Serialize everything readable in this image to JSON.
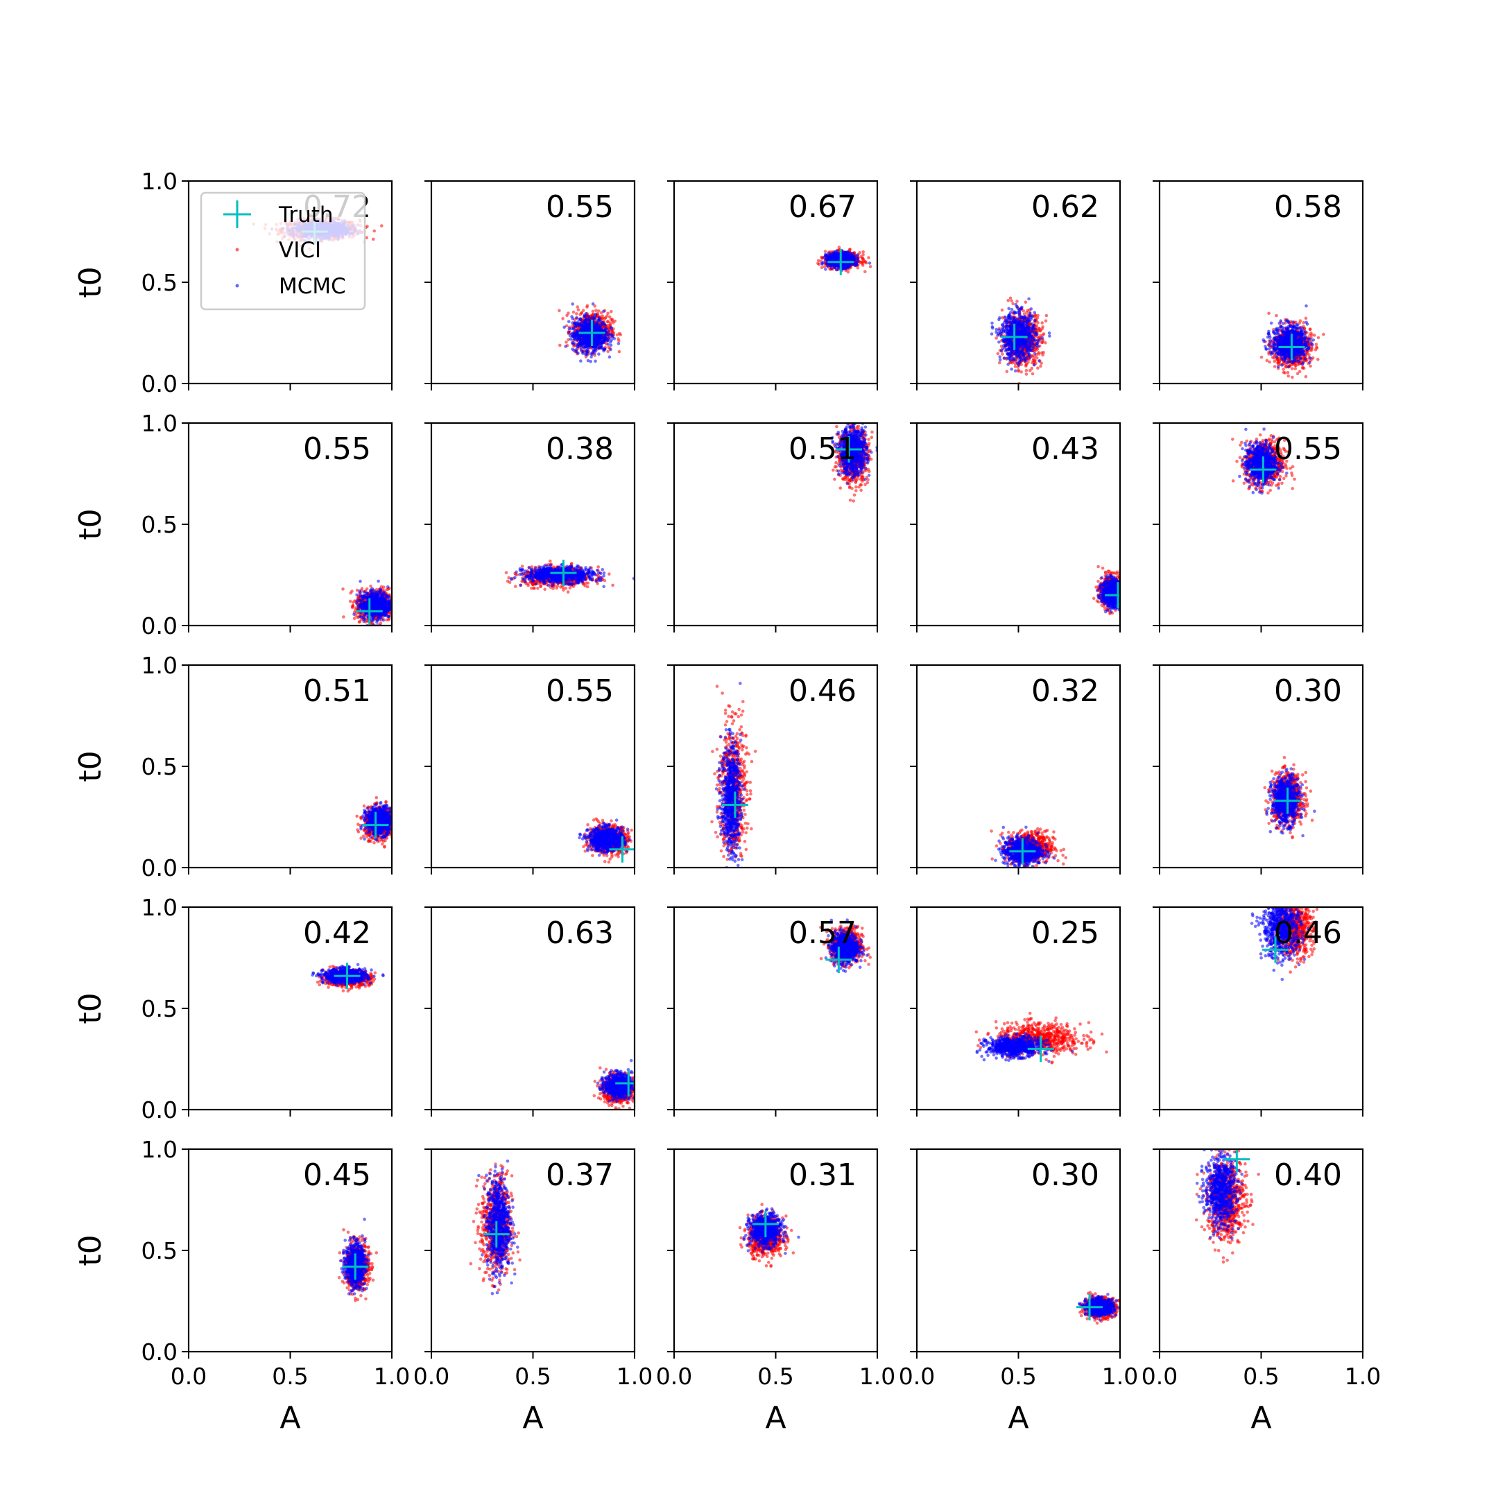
{
  "chart_data": {
    "type": "scatter",
    "grid": false,
    "legend_position": "top-left",
    "xlabel": "A",
    "ylabel": "t0",
    "xlim": [
      0,
      1
    ],
    "ylim": [
      0,
      1
    ],
    "xticks": [
      "0.0",
      "0.5",
      "1.0"
    ],
    "yticks": [
      "0.0",
      "0.5",
      "1.0"
    ],
    "legend": [
      {
        "label": "Truth",
        "marker": "plus",
        "color": "#00bfbf"
      },
      {
        "label": "VICI",
        "marker": "dot",
        "color": "#ff0000"
      },
      {
        "label": "MCMC",
        "marker": "dot",
        "color": "#0000ff"
      }
    ],
    "colors": {
      "truth": "#00bfbf",
      "vici": "#ff0000",
      "mcmc": "#0000ff"
    },
    "panels": [
      {
        "overlap": "0.72",
        "truth": [
          0.62,
          0.75
        ],
        "vici": {
          "center": [
            0.65,
            0.76
          ],
          "spread": [
            0.1,
            0.025
          ]
        },
        "mcmc": {
          "center": [
            0.66,
            0.76
          ],
          "spread": [
            0.07,
            0.02
          ]
        }
      },
      {
        "overlap": "0.55",
        "truth": [
          0.79,
          0.25
        ],
        "vici": {
          "center": [
            0.79,
            0.26
          ],
          "spread": [
            0.05,
            0.05
          ]
        },
        "mcmc": {
          "center": [
            0.78,
            0.24
          ],
          "spread": [
            0.045,
            0.045
          ]
        }
      },
      {
        "overlap": "0.67",
        "truth": [
          0.82,
          0.6
        ],
        "vici": {
          "center": [
            0.83,
            0.61
          ],
          "spread": [
            0.045,
            0.02
          ]
        },
        "mcmc": {
          "center": [
            0.82,
            0.61
          ],
          "spread": [
            0.035,
            0.018
          ]
        }
      },
      {
        "overlap": "0.62",
        "truth": [
          0.48,
          0.23
        ],
        "vici": {
          "center": [
            0.52,
            0.22
          ],
          "spread": [
            0.05,
            0.07
          ]
        },
        "mcmc": {
          "center": [
            0.5,
            0.23
          ],
          "spread": [
            0.045,
            0.06
          ]
        }
      },
      {
        "overlap": "0.58",
        "truth": [
          0.65,
          0.18
        ],
        "vici": {
          "center": [
            0.65,
            0.18
          ],
          "spread": [
            0.05,
            0.055
          ]
        },
        "mcmc": {
          "center": [
            0.64,
            0.2
          ],
          "spread": [
            0.045,
            0.045
          ]
        }
      },
      {
        "overlap": "0.55",
        "truth": [
          0.89,
          0.07
        ],
        "vici": {
          "center": [
            0.92,
            0.1
          ],
          "spread": [
            0.05,
            0.04
          ]
        },
        "mcmc": {
          "center": [
            0.92,
            0.1
          ],
          "spread": [
            0.04,
            0.035
          ]
        }
      },
      {
        "overlap": "0.38",
        "truth": [
          0.65,
          0.26
        ],
        "vici": {
          "center": [
            0.62,
            0.24
          ],
          "spread": [
            0.09,
            0.025
          ]
        },
        "mcmc": {
          "center": [
            0.63,
            0.25
          ],
          "spread": [
            0.09,
            0.02
          ]
        }
      },
      {
        "overlap": "0.51",
        "truth": [
          0.86,
          0.87
        ],
        "vici": {
          "center": [
            0.88,
            0.84
          ],
          "spread": [
            0.04,
            0.07
          ]
        },
        "mcmc": {
          "center": [
            0.88,
            0.86
          ],
          "spread": [
            0.035,
            0.06
          ]
        }
      },
      {
        "overlap": "0.43",
        "truth": [
          0.99,
          0.15
        ],
        "vici": {
          "center": [
            0.96,
            0.17
          ],
          "spread": [
            0.03,
            0.04
          ]
        },
        "mcmc": {
          "center": [
            0.96,
            0.16
          ],
          "spread": [
            0.025,
            0.035
          ]
        }
      },
      {
        "overlap": "0.55",
        "truth": [
          0.51,
          0.77
        ],
        "vici": {
          "center": [
            0.52,
            0.8
          ],
          "spread": [
            0.05,
            0.06
          ]
        },
        "mcmc": {
          "center": [
            0.5,
            0.8
          ],
          "spread": [
            0.04,
            0.05
          ]
        }
      },
      {
        "overlap": "0.51",
        "truth": [
          0.92,
          0.21
        ],
        "vici": {
          "center": [
            0.94,
            0.22
          ],
          "spread": [
            0.04,
            0.04
          ]
        },
        "mcmc": {
          "center": [
            0.94,
            0.23
          ],
          "spread": [
            0.035,
            0.035
          ]
        }
      },
      {
        "overlap": "0.55",
        "truth": [
          0.94,
          0.09
        ],
        "vici": {
          "center": [
            0.87,
            0.14
          ],
          "spread": [
            0.05,
            0.035
          ]
        },
        "mcmc": {
          "center": [
            0.86,
            0.14
          ],
          "spread": [
            0.045,
            0.03
          ]
        }
      },
      {
        "overlap": "0.46",
        "truth": [
          0.3,
          0.31
        ],
        "vici": {
          "center": [
            0.29,
            0.38
          ],
          "spread": [
            0.035,
            0.17
          ]
        },
        "mcmc": {
          "center": [
            0.28,
            0.34
          ],
          "spread": [
            0.025,
            0.14
          ]
        }
      },
      {
        "overlap": "0.32",
        "truth": [
          0.52,
          0.08
        ],
        "vici": {
          "center": [
            0.56,
            0.1
          ],
          "spread": [
            0.06,
            0.04
          ]
        },
        "mcmc": {
          "center": [
            0.52,
            0.08
          ],
          "spread": [
            0.05,
            0.035
          ]
        }
      },
      {
        "overlap": "0.30",
        "truth": [
          0.63,
          0.33
        ],
        "vici": {
          "center": [
            0.63,
            0.34
          ],
          "spread": [
            0.04,
            0.065
          ]
        },
        "mcmc": {
          "center": [
            0.62,
            0.33
          ],
          "spread": [
            0.035,
            0.06
          ]
        }
      },
      {
        "overlap": "0.42",
        "truth": [
          0.78,
          0.66
        ],
        "vici": {
          "center": [
            0.78,
            0.65
          ],
          "spread": [
            0.06,
            0.02
          ]
        },
        "mcmc": {
          "center": [
            0.77,
            0.66
          ],
          "spread": [
            0.055,
            0.018
          ]
        }
      },
      {
        "overlap": "0.63",
        "truth": [
          0.97,
          0.13
        ],
        "vici": {
          "center": [
            0.92,
            0.1
          ],
          "spread": [
            0.04,
            0.035
          ]
        },
        "mcmc": {
          "center": [
            0.92,
            0.12
          ],
          "spread": [
            0.035,
            0.03
          ]
        }
      },
      {
        "overlap": "0.57",
        "truth": [
          0.81,
          0.74
        ],
        "vici": {
          "center": [
            0.85,
            0.81
          ],
          "spread": [
            0.04,
            0.045
          ]
        },
        "mcmc": {
          "center": [
            0.84,
            0.8
          ],
          "spread": [
            0.035,
            0.04
          ]
        }
      },
      {
        "overlap": "0.25",
        "truth": [
          0.61,
          0.3
        ],
        "vici": {
          "center": [
            0.6,
            0.35
          ],
          "spread": [
            0.11,
            0.04
          ]
        },
        "mcmc": {
          "center": [
            0.48,
            0.31
          ],
          "spread": [
            0.07,
            0.025
          ]
        }
      },
      {
        "overlap": "0.46",
        "truth": [
          0.57,
          0.79
        ],
        "vici": {
          "center": [
            0.66,
            0.9
          ],
          "spread": [
            0.05,
            0.07
          ]
        },
        "mcmc": {
          "center": [
            0.6,
            0.9
          ],
          "spread": [
            0.05,
            0.08
          ]
        }
      },
      {
        "overlap": "0.45",
        "truth": [
          0.82,
          0.42
        ],
        "vici": {
          "center": [
            0.83,
            0.42
          ],
          "spread": [
            0.03,
            0.06
          ]
        },
        "mcmc": {
          "center": [
            0.82,
            0.43
          ],
          "spread": [
            0.025,
            0.055
          ]
        }
      },
      {
        "overlap": "0.37",
        "truth": [
          0.32,
          0.58
        ],
        "vici": {
          "center": [
            0.32,
            0.62
          ],
          "spread": [
            0.04,
            0.13
          ]
        },
        "mcmc": {
          "center": [
            0.33,
            0.63
          ],
          "spread": [
            0.03,
            0.12
          ]
        }
      },
      {
        "overlap": "0.31",
        "truth": [
          0.45,
          0.63
        ],
        "vici": {
          "center": [
            0.45,
            0.57
          ],
          "spread": [
            0.045,
            0.05
          ]
        },
        "mcmc": {
          "center": [
            0.45,
            0.6
          ],
          "spread": [
            0.04,
            0.04
          ]
        }
      },
      {
        "overlap": "0.30",
        "truth": [
          0.85,
          0.22
        ],
        "vici": {
          "center": [
            0.9,
            0.22
          ],
          "spread": [
            0.04,
            0.025
          ]
        },
        "mcmc": {
          "center": [
            0.9,
            0.22
          ],
          "spread": [
            0.035,
            0.02
          ]
        }
      },
      {
        "overlap": "0.40",
        "truth": [
          0.38,
          0.95
        ],
        "vici": {
          "center": [
            0.33,
            0.75
          ],
          "spread": [
            0.05,
            0.11
          ]
        },
        "mcmc": {
          "center": [
            0.3,
            0.8
          ],
          "spread": [
            0.04,
            0.09
          ]
        }
      }
    ]
  }
}
